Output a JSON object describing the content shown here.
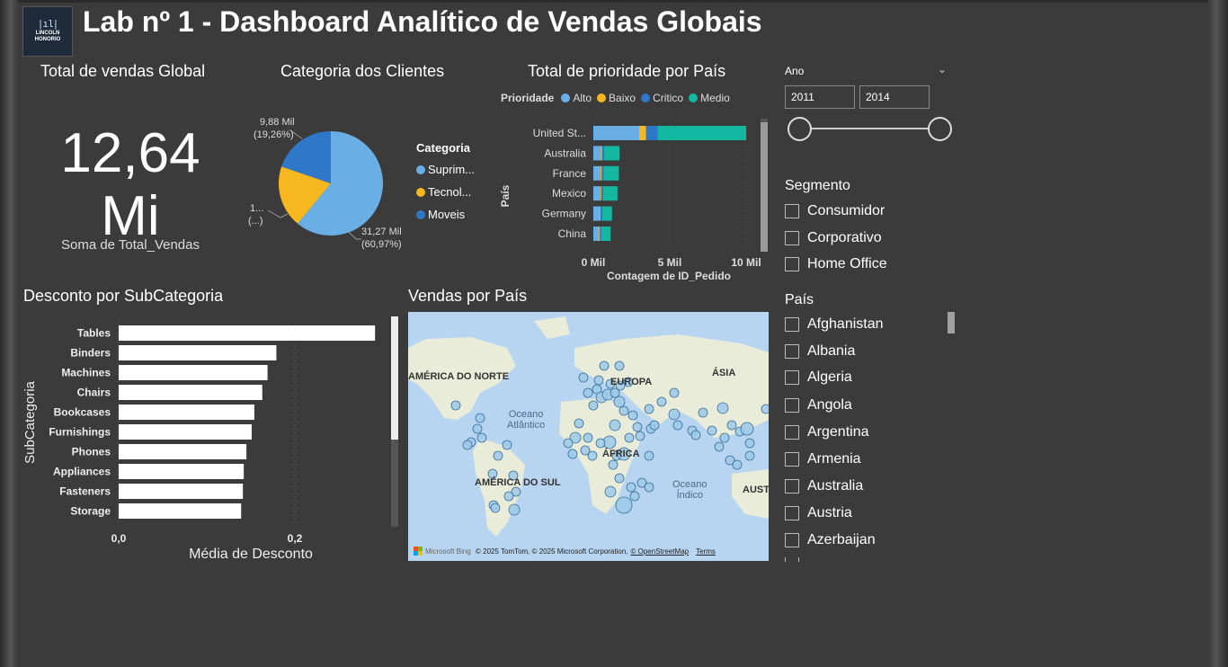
{
  "header": {
    "title": "Lab nº 1 - Dashboard Analítico de Vendas Globais",
    "logo_line1": "LINCOLN",
    "logo_line2": "HONORIO"
  },
  "kpi": {
    "title": "Total de vendas Global",
    "value_line1": "12,64",
    "value_line2": "Mi",
    "subtitle": "Soma de Total_Vendas"
  },
  "pie": {
    "title": "Categoria dos Clientes",
    "legend_title": "Categoria",
    "label_top_value": "9,88 Mil",
    "label_top_pct": "(19,26%)",
    "label_left_value": "1...",
    "label_left_pct": "(...)",
    "label_right_value": "31,27 Mil",
    "label_right_pct": "(60,97%)"
  },
  "priority": {
    "title": "Total de prioridade por País",
    "legend_title": "Prioridade"
  },
  "discount": {
    "title": "Desconto por SubCategoria"
  },
  "map": {
    "title": "Vendas por País",
    "labels": {
      "north_america": "AMÉRICA DO NORTE",
      "europe": "EUROPA",
      "asia": "ÁSIA",
      "south_america": "AMÉRICA DO SUL",
      "africa": "ÁFRICA",
      "australia_cut": "AUST",
      "ocean_atlantic_1": "Oceano",
      "ocean_atlantic_2": "Atlântico",
      "ocean_indian_1": "Oceano",
      "ocean_indian_2": "Índico"
    },
    "footer_brand": "Microsoft Bing",
    "footer_copy": "© 2025 TomTom, © 2025 Microsoft Corporation,",
    "footer_osm": "© OpenStreetMap",
    "footer_terms": "Terms"
  },
  "slicers": {
    "ano": {
      "label": "Ano",
      "from": "2011",
      "to": "2014"
    },
    "segmento": {
      "label": "Segmento",
      "items": [
        "Consumidor",
        "Corporativo",
        "Home Office"
      ]
    },
    "pais": {
      "label": "País",
      "items": [
        "Afghanistan",
        "Albania",
        "Algeria",
        "Angola",
        "Argentina",
        "Armenia",
        "Australia",
        "Austria",
        "Azerbaijan"
      ]
    }
  },
  "colors": {
    "alto": "#6aaee6",
    "baixo": "#f6b81e",
    "critico": "#2f77c8",
    "medio": "#14b8a0",
    "pie_suprimentos": "#6aaee6",
    "pie_tecnologia": "#f6b81e",
    "pie_moveis": "#2f77c8",
    "map_land": "#e8ecd9",
    "map_water": "#b7d4f0",
    "bubble": "#9ecae8"
  },
  "chart_data": [
    {
      "type": "pie",
      "title": "Categoria dos Clientes",
      "legend_title": "Categoria",
      "categories": [
        "Suprim...",
        "Tecnol...",
        "Moveis"
      ],
      "values": [
        31270,
        9880,
        10130
      ],
      "percentages": [
        60.97,
        19.26,
        19.77
      ],
      "data_labels": [
        "31,27 Mil (60,97%)",
        "9,88 Mil (19,26%)",
        "1... (...)"
      ]
    },
    {
      "type": "bar",
      "orientation": "horizontal",
      "stacked": true,
      "title": "Total de prioridade por País",
      "xlabel": "Contagem de ID_Pedido",
      "ylabel": "País",
      "xlim": [
        0,
        10000
      ],
      "x_ticks": [
        "0 Mil",
        "5 Mil",
        "10 Mil"
      ],
      "categories": [
        "United St...",
        "Australia",
        "France",
        "Mexico",
        "Germany",
        "China"
      ],
      "series": [
        {
          "name": "Alto",
          "values": [
            3000,
            500,
            480,
            450,
            420,
            380
          ]
        },
        {
          "name": "Baixo",
          "values": [
            450,
            80,
            75,
            70,
            60,
            55
          ]
        },
        {
          "name": "Critico",
          "values": [
            750,
            130,
            120,
            110,
            100,
            95
          ]
        },
        {
          "name": "Medio",
          "values": [
            5800,
            1000,
            1000,
            950,
            640,
            590
          ]
        }
      ]
    },
    {
      "type": "bar",
      "orientation": "horizontal",
      "title": "Desconto por SubCategoria",
      "xlabel": "Média de Desconto",
      "ylabel": "SubCategoria",
      "xlim": [
        0,
        0.3
      ],
      "x_ticks": [
        "0,0",
        "0,2"
      ],
      "categories": [
        "Tables",
        "Binders",
        "Machines",
        "Chairs",
        "Bookcases",
        "Furnishings",
        "Phones",
        "Appliances",
        "Fasteners",
        "Storage"
      ],
      "values": [
        0.291,
        0.179,
        0.169,
        0.163,
        0.154,
        0.151,
        0.145,
        0.142,
        0.141,
        0.139
      ]
    }
  ]
}
